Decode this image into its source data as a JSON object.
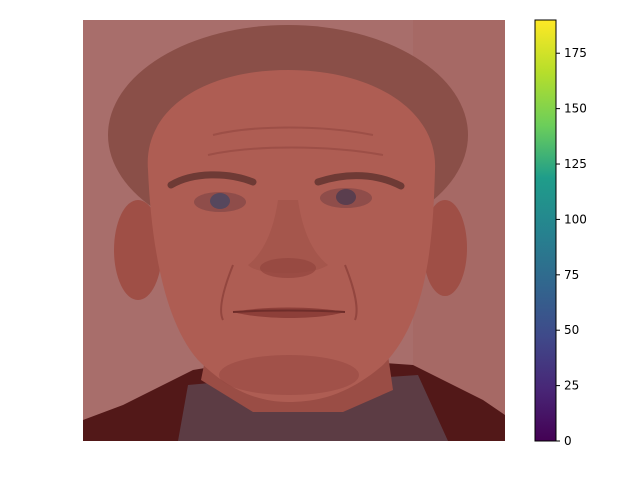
{
  "chart_data": {
    "type": "heatmap",
    "title": "",
    "xlabel": "",
    "ylabel": "",
    "image_axes_visible": false,
    "image_description_hint": "face-photo",
    "colorbar": {
      "colormap": "viridis",
      "range": [
        0,
        190
      ],
      "ticks": [
        0,
        25,
        50,
        75,
        100,
        125,
        150,
        175
      ],
      "tick_labels": [
        "0",
        "25",
        "50",
        "75",
        "100",
        "125",
        "150",
        "175"
      ],
      "position": "right"
    }
  },
  "colors": {
    "background": "#a86e6b",
    "hair": "#8a4f48",
    "skin": "#ae5d53",
    "skin_shadow": "#93463f",
    "jacket": "#521818",
    "shirt": "#5c3c44",
    "eye": "#56475d",
    "viridis_stops": [
      "#440154",
      "#482777",
      "#3f4a8a",
      "#31678e",
      "#26838f",
      "#1f9d8a",
      "#6cce5a",
      "#b6de2b",
      "#fee825"
    ]
  }
}
